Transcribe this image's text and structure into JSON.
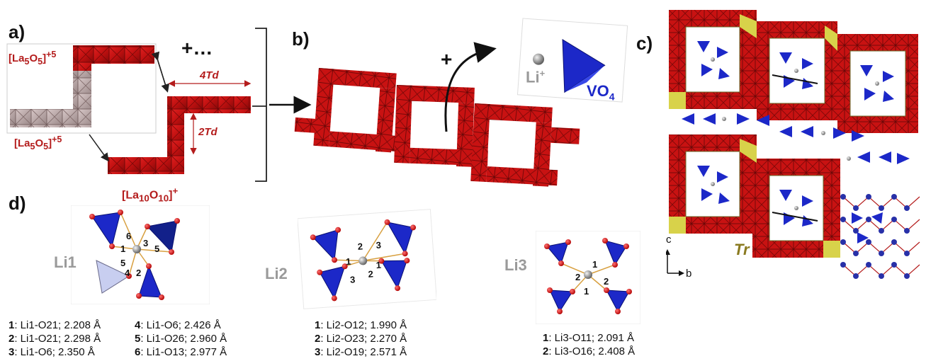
{
  "panels": {
    "a": "a)",
    "b": "b)",
    "c": "c)",
    "d": "d)"
  },
  "panel_a": {
    "formula_top": "[La5O5]+5",
    "formula_bottom": "[La5O5]+5",
    "plus_more": "+…",
    "dim_horizontal": "4Td",
    "dim_vertical": "2Td"
  },
  "panel_b": {
    "plus": "+",
    "li_label": "Li+",
    "vo4_label": "VO4"
  },
  "panel_c": {
    "tr_label": "Tr",
    "axis_c": "c",
    "axis_b": "b"
  },
  "panel_d": {
    "formula": "[La10O10]+",
    "sites": [
      {
        "name": "Li1",
        "bond_numbers": [
          "1",
          "2",
          "3",
          "4",
          "5",
          "6"
        ]
      },
      {
        "name": "Li2",
        "bond_numbers": [
          "1",
          "2",
          "3"
        ]
      },
      {
        "name": "Li3",
        "bond_numbers": [
          "1",
          "2"
        ]
      }
    ],
    "li1_bonds_left": [
      {
        "n": "1",
        "text": ": Li1-O21; 2.208 Å"
      },
      {
        "n": "2",
        "text": ": Li1-O21; 2.298 Å"
      },
      {
        "n": "3",
        "text": ": Li1-O6;   2.350 Å"
      }
    ],
    "li1_bonds_right": [
      {
        "n": "4",
        "text": ": Li1-O6;   2.426 Å"
      },
      {
        "n": "5",
        "text": ": Li1-O26; 2.960 Å"
      },
      {
        "n": "6",
        "text": ": Li1-O13; 2.977 Å"
      }
    ],
    "li2_bonds": [
      {
        "n": "1",
        "text": ": Li2-O12;  1.990 Å"
      },
      {
        "n": "2",
        "text": ": Li2-O23;  2.270 Å"
      },
      {
        "n": "3",
        "text": ": Li2-O19;  2.571 Å"
      }
    ],
    "li3_bonds": [
      {
        "n": "1",
        "text": ": Li3-O11;  2.091 Å"
      },
      {
        "n": "2",
        "text": ": Li3-O16;  2.408 Å"
      }
    ]
  },
  "colors": {
    "framework_red": "#cc1111",
    "framework_dark": "#8a0a0a",
    "vo4_blue": "#1c28c8",
    "label_red": "#b41c1c",
    "tr_yellow": "#d8d24a",
    "li_gray": "#909090"
  }
}
